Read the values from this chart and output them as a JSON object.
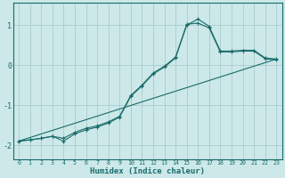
{
  "xlabel": "Humidex (Indice chaleur)",
  "bg_color": "#cce8e8",
  "grid_color": "#aacccc",
  "line_color": "#1a6b6b",
  "xlim": [
    -0.5,
    23.5
  ],
  "ylim": [
    -2.35,
    1.55
  ],
  "xticks": [
    0,
    1,
    2,
    3,
    4,
    5,
    6,
    7,
    8,
    9,
    10,
    11,
    12,
    13,
    14,
    15,
    16,
    17,
    18,
    19,
    20,
    21,
    22,
    23
  ],
  "yticks": [
    -2,
    -1,
    0,
    1
  ],
  "line1_x": [
    0,
    1,
    2,
    3,
    4,
    5,
    6,
    7,
    8,
    9,
    10,
    11,
    12,
    13,
    14,
    15,
    16,
    17,
    18,
    19,
    20,
    21,
    22,
    23
  ],
  "line1_y": [
    -1.9,
    -1.87,
    -1.83,
    -1.78,
    -1.9,
    -1.72,
    -1.62,
    -1.55,
    -1.45,
    -1.3,
    -0.78,
    -0.52,
    -0.22,
    -0.05,
    0.18,
    1.0,
    1.15,
    0.97,
    0.35,
    0.35,
    0.37,
    0.37,
    0.18,
    0.15
  ],
  "line2_x": [
    0,
    23
  ],
  "line2_y": [
    -1.9,
    0.15
  ],
  "line3_x": [
    0,
    1,
    2,
    3,
    4,
    5,
    6,
    7,
    8,
    9,
    10,
    11,
    12,
    13,
    14,
    15,
    16,
    17,
    18,
    19,
    20,
    21,
    22,
    23
  ],
  "line3_y": [
    -1.9,
    -1.87,
    -1.83,
    -1.78,
    -1.83,
    -1.68,
    -1.58,
    -1.52,
    -1.42,
    -1.28,
    -0.76,
    -0.5,
    -0.2,
    -0.03,
    0.2,
    1.02,
    1.05,
    0.93,
    0.33,
    0.33,
    0.35,
    0.35,
    0.16,
    0.13
  ]
}
